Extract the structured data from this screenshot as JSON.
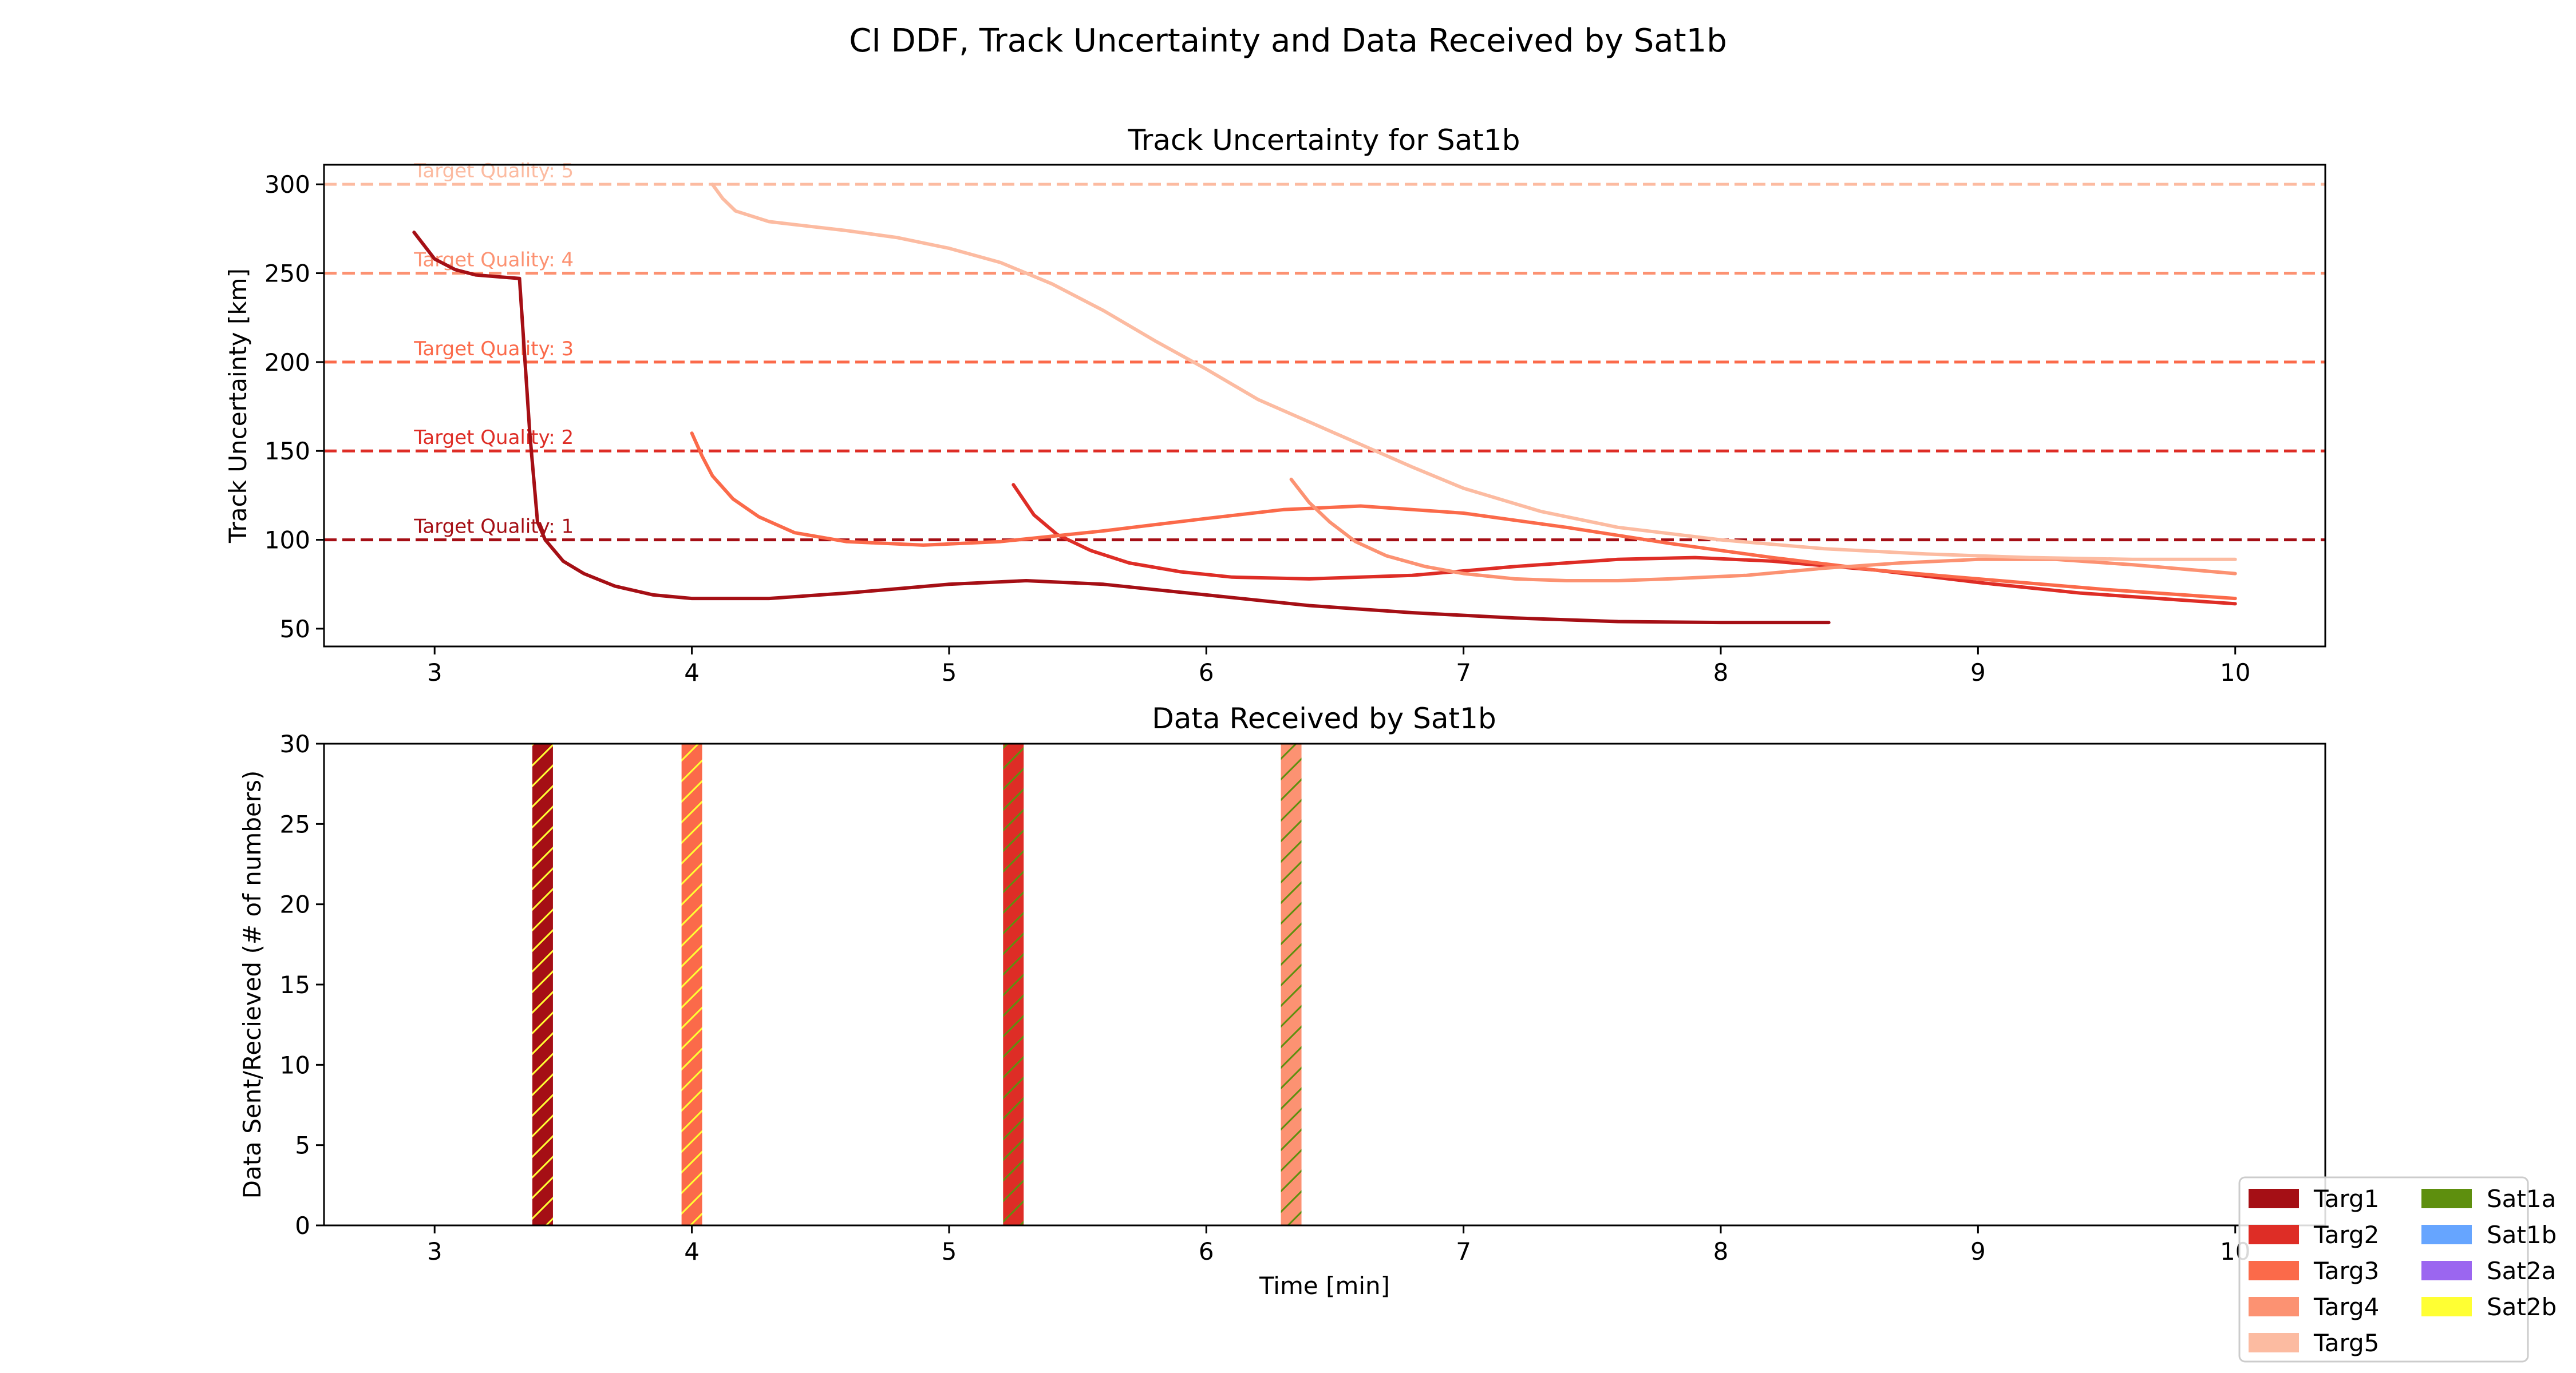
{
  "chart_data": [
    {
      "type": "line",
      "suptitle": "CI DDF, Track Uncertainty and Data Received by Sat1b",
      "title": "Track Uncertainty for Sat1b",
      "xlabel": "",
      "ylabel": "Track Uncertainty [km]",
      "xlim": [
        2.57,
        10.35
      ],
      "ylim": [
        40,
        311
      ],
      "xticks": [
        "3",
        "4",
        "5",
        "6",
        "7",
        "8",
        "9",
        "10"
      ],
      "yticks": [
        "50",
        "100",
        "150",
        "200",
        "250",
        "300"
      ],
      "grid": false,
      "thresholds": [
        {
          "label": "Target Quality: 1",
          "value": 100,
          "color": "#a50f15"
        },
        {
          "label": "Target Quality: 2",
          "value": 150,
          "color": "#de2d26"
        },
        {
          "label": "Target Quality: 3",
          "value": 200,
          "color": "#fb6a4a"
        },
        {
          "label": "Target Quality: 4",
          "value": 250,
          "color": "#fc9272"
        },
        {
          "label": "Target Quality: 5",
          "value": 300,
          "color": "#fcbba1"
        }
      ],
      "series": [
        {
          "name": "Targ1",
          "color": "#a50f15",
          "x": [
            2.92,
            3.0,
            3.08,
            3.16,
            3.33,
            3.37,
            3.4,
            3.43,
            3.5,
            3.58,
            3.7,
            3.85,
            4.0,
            4.3,
            4.6,
            5.0,
            5.3,
            5.6,
            6.0,
            6.4,
            6.8,
            7.2,
            7.6,
            8.0,
            8.42
          ],
          "y": [
            273,
            258,
            252,
            249,
            247,
            160,
            110,
            100,
            88,
            81,
            74,
            69,
            67,
            67,
            70,
            75,
            77,
            75,
            69,
            63,
            59,
            56,
            54,
            53.5,
            53.5
          ]
        },
        {
          "name": "Targ2",
          "color": "#de2d26",
          "x": [
            5.25,
            5.33,
            5.42,
            5.55,
            5.7,
            5.9,
            6.1,
            6.4,
            6.8,
            7.2,
            7.6,
            7.9,
            8.2,
            8.6,
            9.0,
            9.4,
            9.7,
            10.0
          ],
          "y": [
            131,
            114,
            103,
            94,
            87,
            82,
            79,
            78,
            80,
            85,
            89,
            90,
            88,
            83,
            76,
            70,
            67,
            64
          ]
        },
        {
          "name": "Targ3",
          "color": "#fb6a4a",
          "x": [
            4.0,
            4.04,
            4.08,
            4.16,
            4.26,
            4.4,
            4.6,
            4.9,
            5.2,
            5.6,
            6.0,
            6.3,
            6.6,
            7.0,
            7.4,
            7.8,
            8.2,
            8.6,
            9.0,
            9.5,
            10.0
          ],
          "y": [
            160,
            147,
            136,
            123,
            113,
            104,
            99,
            97,
            99,
            105,
            112,
            117,
            119,
            115,
            107,
            98,
            90,
            83,
            78,
            72,
            67
          ]
        },
        {
          "name": "Targ4",
          "color": "#fc9272",
          "x": [
            6.33,
            6.4,
            6.48,
            6.58,
            6.7,
            6.85,
            7.0,
            7.2,
            7.4,
            7.6,
            7.8,
            8.1,
            8.4,
            8.7,
            9.0,
            9.3,
            9.6,
            10.0
          ],
          "y": [
            134,
            121,
            110,
            99,
            91,
            85,
            81,
            78,
            77,
            77,
            78,
            80,
            84,
            87,
            89,
            89,
            86,
            81
          ]
        },
        {
          "name": "Targ5",
          "color": "#fcbba1",
          "x": [
            4.08,
            4.12,
            4.17,
            4.3,
            4.6,
            4.8,
            5.0,
            5.2,
            5.4,
            5.6,
            5.8,
            6.0,
            6.2,
            6.5,
            6.8,
            7.0,
            7.3,
            7.6,
            8.0,
            8.4,
            8.8,
            9.2,
            9.6,
            10.0
          ],
          "y": [
            300,
            292,
            285,
            279,
            274,
            270,
            264,
            256,
            244,
            229,
            212,
            196,
            179,
            160,
            141,
            129,
            116,
            107,
            100,
            95,
            92,
            90,
            89,
            89
          ]
        }
      ]
    },
    {
      "type": "bar",
      "title": "Data Received by Sat1b",
      "xlabel": "Time [min]",
      "ylabel": "Data Sent/Recieved (# of numbers)",
      "xlim": [
        2.57,
        10.35
      ],
      "ylim": [
        0,
        30
      ],
      "xticks": [
        "3",
        "4",
        "5",
        "6",
        "7",
        "8",
        "9",
        "10"
      ],
      "yticks": [
        "0",
        "5",
        "10",
        "15",
        "20",
        "25",
        "30"
      ],
      "grid": false,
      "bars": [
        {
          "x": 3.42,
          "width": 0.08,
          "value": 30,
          "target": "Targ1",
          "source": "Sat2b"
        },
        {
          "x": 4.0,
          "width": 0.08,
          "value": 30,
          "target": "Targ3",
          "source": "Sat2b"
        },
        {
          "x": 5.25,
          "width": 0.08,
          "value": 30,
          "target": "Targ2",
          "source": "Sat1a"
        },
        {
          "x": 6.33,
          "width": 0.08,
          "value": 30,
          "target": "Targ4",
          "source": "Sat1a"
        }
      ]
    }
  ],
  "legend": {
    "placement": "bottom-right",
    "targets": [
      {
        "label": "Targ1",
        "color": "#a50f15"
      },
      {
        "label": "Targ2",
        "color": "#de2d26"
      },
      {
        "label": "Targ3",
        "color": "#fb6a4a"
      },
      {
        "label": "Targ4",
        "color": "#fc9272"
      },
      {
        "label": "Targ5",
        "color": "#fcbba1"
      }
    ],
    "satellites": [
      {
        "label": "Sat1a",
        "color": "#5e8f0e"
      },
      {
        "label": "Sat1b",
        "color": "#66a5ff"
      },
      {
        "label": "Sat2a",
        "color": "#9b66f0"
      },
      {
        "label": "Sat2b",
        "color": "#ffff33"
      }
    ]
  }
}
